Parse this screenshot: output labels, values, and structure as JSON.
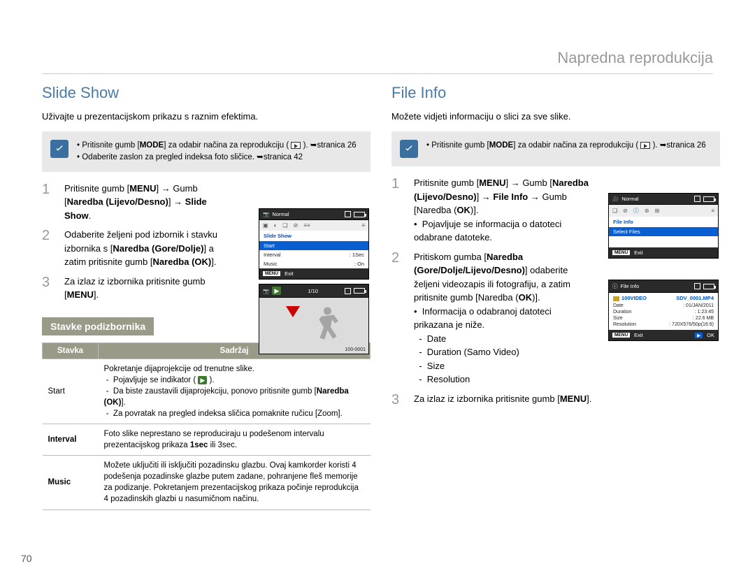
{
  "breadcrumb": "Napredna reprodukcija",
  "page_number": "70",
  "left": {
    "heading": "Slide Show",
    "intro": "Uživajte u prezentacijskom prikazu s raznim efektima.",
    "note_items": [
      "Pritisnite gumb [MODE] za odabir načina za reprodukciju ( ▶ ). ➥stranica 26",
      "Odaberite zaslon za pregled indeksa foto sličice. ➥stranica 42"
    ],
    "steps": [
      {
        "n": "1",
        "html": "Pritisnite gumb [<b>MENU</b>] → Gumb [<b>Naredba (Lijevo/Desno)</b>] → <b>Slide Show</b>."
      },
      {
        "n": "2",
        "html": "Odaberite željeni pod izbornik i stavku izbornika s [<b>Naredba (Gore/Dolje)</b>] a zatim pritisnite gumb [<b>Naredba (OK)</b>]."
      },
      {
        "n": "3",
        "html": "Za izlaz iz izbornika pritisnite gumb [<b>MENU</b>]."
      }
    ],
    "sub_heading": "Stavke podizbornika",
    "table": {
      "col1": "Stavka",
      "col2": "Sadržaj",
      "rows": [
        {
          "k": "Start",
          "v": "Pokretanje dijaprojekcije od trenutne slike.<br>&nbsp;-&nbsp; Pojavljuje se indikator ( <span class='indicator-chip'>▶</span> ).<br>&nbsp;-&nbsp; Da biste zaustavili dijaprojekciju, ponovo pritisnite gumb [<b>Naredba (OK)</b>].<br>&nbsp;-&nbsp; Za povratak na pregled indeksa sličica pomaknite ručicu [Zoom]."
        },
        {
          "k": "<b>Interval</b>",
          "v": "Foto slike neprestano se reproduciraju u podešenom intervalu prezentacijskog prikaza <b>1sec</b> ili 3sec."
        },
        {
          "k": "<b>Music</b>",
          "v": "Možete uključiti ili isključiti pozadinsku glazbu. Ovaj kamkorder koristi 4 podešenja pozadinske glazbe putem zadane, pohranjene fleš memorije za podizanje. Pokretanjem prezentacijskog prikaza počinje reprodukcija 4 pozadinskih glazbi u nasumičnom načinu."
        }
      ]
    },
    "cam1": {
      "mode": "Normal",
      "title": "Slide Show",
      "rows": [
        {
          "label": "Start",
          "val": "",
          "hl": true
        },
        {
          "label": "Interval",
          "val": ": 1Sec"
        },
        {
          "label": "Music",
          "val": ": On"
        }
      ],
      "exit": "Exit",
      "menu": "MENU"
    },
    "cam2": {
      "count": "1/10",
      "file": "100-0001"
    }
  },
  "right": {
    "heading": "File Info",
    "intro": "Možete vidjeti informaciju o slici za sve slike.",
    "note_items": [
      "Pritisnite gumb [MODE] za odabir načina za reprodukciju ( ▶ ). ➥stranica 26"
    ],
    "steps": [
      {
        "n": "1",
        "html": "Pritisnite gumb [<b>MENU</b>] → Gumb [<b>Naredba (Lijevo/Desno)</b>] → <b>File Info</b> → Gumb [Naredba (<b>OK</b>)].<br>•&nbsp; Pojavljuje se informacija o datoteci odabrane datoteke."
      },
      {
        "n": "2",
        "html": "Pritiskom gumba [<b>Naredba (Gore/Dolje/Lijevo/Desno)</b>] odaberite željeni videozapis ili fotografiju, a zatim pritisnite gumb [Naredba (<b>OK</b>)].<br>•&nbsp; Informacija o odabranoj datoteci prikazana je niže.<br>&nbsp;&nbsp;-&nbsp; Date<br>&nbsp;&nbsp;-&nbsp; Duration (Samo Video)<br>&nbsp;&nbsp;-&nbsp; Size<br>&nbsp;&nbsp;-&nbsp; Resolution"
      },
      {
        "n": "3",
        "html": "Za izlaz iz izbornika pritisnite gumb [<b>MENU</b>]."
      }
    ],
    "cam1": {
      "mode": "Normal",
      "title": "File Info",
      "rows": [
        {
          "label": "Select Files",
          "val": "",
          "hl": true
        }
      ],
      "exit": "Exit",
      "menu": "MENU"
    },
    "cam2": {
      "title": "File Info",
      "folder": "100VIDEO",
      "file": "SDV_0001.MP4",
      "rows": [
        {
          "k": "Date",
          "v": ": 01/JAN/2011"
        },
        {
          "k": "Duration",
          "v": ": 1:23:45"
        },
        {
          "k": "Size",
          "v": ": 22.6 MB"
        },
        {
          "k": "Resolution",
          "v": ": 720X576/50p(16:9)"
        }
      ],
      "exit": "Exit",
      "ok": "OK",
      "menu": "MENU"
    }
  }
}
